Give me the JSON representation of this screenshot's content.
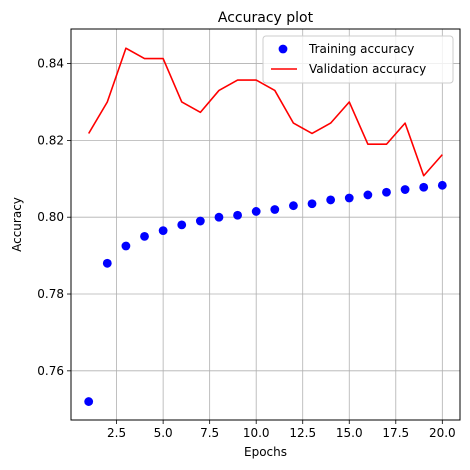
{
  "chart_data": {
    "type": "line",
    "title": "Accuracy plot",
    "xlabel": "Epochs",
    "ylabel": "Accuracy",
    "xlim": [
      0.05,
      20.95
    ],
    "ylim": [
      0.7472,
      0.849
    ],
    "xticks": [
      2.5,
      5.0,
      7.5,
      10.0,
      12.5,
      15.0,
      17.5,
      20.0
    ],
    "xtick_labels": [
      "2.5",
      "5.0",
      "7.5",
      "10.0",
      "12.5",
      "15.0",
      "17.5",
      "20.0"
    ],
    "yticks": [
      0.76,
      0.78,
      0.8,
      0.82,
      0.84
    ],
    "ytick_labels": [
      "0.76",
      "0.78",
      "0.80",
      "0.82",
      "0.84"
    ],
    "grid": true,
    "legend_position": "top-right",
    "x": [
      1,
      2,
      3,
      4,
      5,
      6,
      7,
      8,
      9,
      10,
      11,
      12,
      13,
      14,
      15,
      16,
      17,
      18,
      19,
      20
    ],
    "series": [
      {
        "name": "Training accuracy",
        "style": "markers",
        "color": "#0000ff",
        "values": [
          0.752,
          0.788,
          0.7925,
          0.795,
          0.7965,
          0.798,
          0.799,
          0.8,
          0.8005,
          0.8015,
          0.802,
          0.803,
          0.8035,
          0.8045,
          0.805,
          0.8058,
          0.8065,
          0.8072,
          0.8078,
          0.8083
        ]
      },
      {
        "name": "Validation accuracy",
        "style": "line",
        "color": "#ff0000",
        "values": [
          0.8218,
          0.83,
          0.844,
          0.8413,
          0.8413,
          0.83,
          0.8273,
          0.833,
          0.8357,
          0.8357,
          0.833,
          0.8245,
          0.8218,
          0.8245,
          0.83,
          0.819,
          0.819,
          0.8245,
          0.8108,
          0.8163
        ]
      }
    ]
  }
}
